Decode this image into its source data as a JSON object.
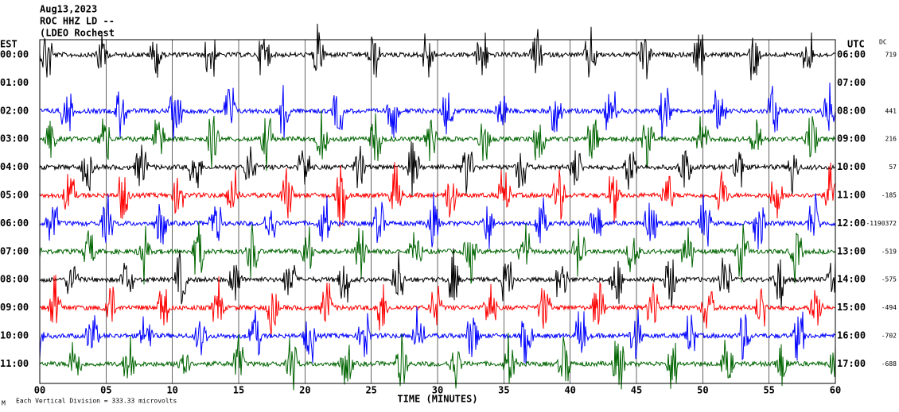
{
  "header": {
    "date": "Aug13,2023",
    "station": "ROC HHZ LD --",
    "network": "(LDEO Rochest"
  },
  "left_axis_title": "EST",
  "right_axis_title": "UTC",
  "dc_title": "DC",
  "rows": [
    {
      "est": "00:00",
      "utc": "06:00",
      "dc": "719",
      "color": "#000000"
    },
    {
      "est": "01:00",
      "utc": "07:00",
      "dc": null
    },
    {
      "est": "02:00",
      "utc": "08:00",
      "dc": "441",
      "color": "#0000ff"
    },
    {
      "est": "03:00",
      "utc": "09:00",
      "dc": "216",
      "color": "#006400"
    },
    {
      "est": "04:00",
      "utc": "10:00",
      "dc": "57",
      "color": "#000000"
    },
    {
      "est": "05:00",
      "utc": "11:00",
      "dc": "-185",
      "color": "#ff0000"
    },
    {
      "est": "06:00",
      "utc": "12:00",
      "dc": "-1190372",
      "color": "#0000ff"
    },
    {
      "est": "07:00",
      "utc": "13:00",
      "dc": "-519",
      "color": "#006400"
    },
    {
      "est": "08:00",
      "utc": "14:00",
      "dc": "-575",
      "color": "#000000"
    },
    {
      "est": "09:00",
      "utc": "15:00",
      "dc": "-494",
      "color": "#ff0000"
    },
    {
      "est": "10:00",
      "utc": "16:00",
      "dc": "-702",
      "color": "#0000ff"
    },
    {
      "est": "11:00",
      "utc": "17:00",
      "dc": "-688",
      "color": "#006400"
    }
  ],
  "x_labels": [
    "00",
    "05",
    "10",
    "15",
    "20",
    "25",
    "30",
    "35",
    "40",
    "45",
    "50",
    "55",
    "60"
  ],
  "x_axis_title": "TIME (MINUTES)",
  "footer_mark": "M",
  "footer": "Each Vertical Division = 333.33 microvolts"
}
